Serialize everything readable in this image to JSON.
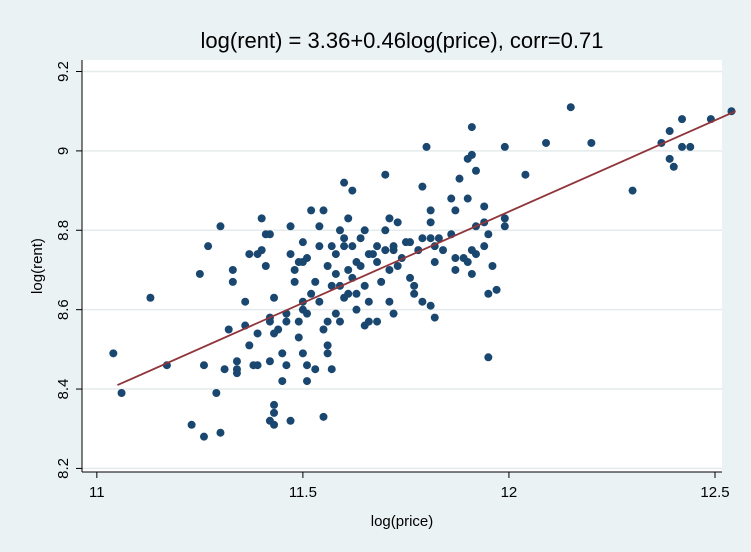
{
  "chart_data": {
    "type": "scatter",
    "title": "log(rent) = 3.36+0.46log(price), corr=0.71",
    "x_label": "log(price)",
    "y_label": "log(rent)",
    "xlim": [
      10.964,
      12.517
    ],
    "ylim": [
      8.191,
      9.229
    ],
    "xticks": [
      11,
      11.5,
      12,
      12.5
    ],
    "yticks": [
      8.2,
      8.4,
      8.6,
      8.8,
      9,
      9.2
    ],
    "grid": true,
    "series": [
      {
        "kind": "scatter",
        "color": "#1a476f",
        "x": [
          11.04,
          11.06,
          11.13,
          11.17,
          11.23,
          11.25,
          11.26,
          11.26,
          11.27,
          11.29,
          11.3,
          11.3,
          11.31,
          11.32,
          11.33,
          11.33,
          11.34,
          11.34,
          11.34,
          11.36,
          11.36,
          11.37,
          11.37,
          11.38,
          11.39,
          11.39,
          11.39,
          11.4,
          11.4,
          11.41,
          11.41,
          11.42,
          11.42,
          11.42,
          11.42,
          11.42,
          11.43,
          11.43,
          11.43,
          11.43,
          11.43,
          11.44,
          11.45,
          11.45,
          11.46,
          11.46,
          11.46,
          11.47,
          11.47,
          11.47,
          11.48,
          11.48,
          11.49,
          11.49,
          11.49,
          11.5,
          11.5,
          11.5,
          11.5,
          11.5,
          11.51,
          11.51,
          11.51,
          11.51,
          11.52,
          11.52,
          11.53,
          11.53,
          11.54,
          11.54,
          11.54,
          11.55,
          11.55,
          11.55,
          11.56,
          11.56,
          11.56,
          11.56,
          11.57,
          11.57,
          11.57,
          11.58,
          11.58,
          11.58,
          11.59,
          11.59,
          11.59,
          11.6,
          11.6,
          11.6,
          11.6,
          11.61,
          11.61,
          11.61,
          11.62,
          11.62,
          11.62,
          11.63,
          11.63,
          11.63,
          11.64,
          11.64,
          11.65,
          11.65,
          11.65,
          11.66,
          11.66,
          11.66,
          11.67,
          11.68,
          11.68,
          11.68,
          11.69,
          11.7,
          11.7,
          11.7,
          11.71,
          11.71,
          11.71,
          11.72,
          11.72,
          11.72,
          11.73,
          11.73,
          11.74,
          11.75,
          11.76,
          11.76,
          11.77,
          11.77,
          11.78,
          11.79,
          11.79,
          11.79,
          11.8,
          11.81,
          11.81,
          11.81,
          11.81,
          11.82,
          11.82,
          11.82,
          11.83,
          11.84,
          11.86,
          11.86,
          11.87,
          11.87,
          11.87,
          11.88,
          11.89,
          11.9,
          11.9,
          11.9,
          11.91,
          11.91,
          11.91,
          11.91,
          11.92,
          11.92,
          11.92,
          11.94,
          11.94,
          11.94,
          11.95,
          11.95,
          11.95,
          11.96,
          11.97,
          11.99,
          11.99,
          11.99,
          12.04,
          12.09,
          12.15,
          12.2,
          12.3,
          12.37,
          12.39,
          12.39,
          12.4,
          12.42,
          12.42,
          12.44,
          12.49,
          12.54
        ],
        "y": [
          8.49,
          8.39,
          8.63,
          8.46,
          8.31,
          8.69,
          8.28,
          8.46,
          8.76,
          8.39,
          8.81,
          8.29,
          8.45,
          8.55,
          8.67,
          8.7,
          8.47,
          8.45,
          8.44,
          8.62,
          8.56,
          8.51,
          8.74,
          8.46,
          8.74,
          8.54,
          8.46,
          8.83,
          8.75,
          8.79,
          8.71,
          8.58,
          8.47,
          8.32,
          8.57,
          8.79,
          8.63,
          8.54,
          8.31,
          8.34,
          8.36,
          8.55,
          8.42,
          8.49,
          8.57,
          8.59,
          8.46,
          8.74,
          8.81,
          8.32,
          8.7,
          8.67,
          8.53,
          8.72,
          8.57,
          8.49,
          8.6,
          8.62,
          8.77,
          8.72,
          8.59,
          8.42,
          8.46,
          8.73,
          8.85,
          8.64,
          8.67,
          8.45,
          8.81,
          8.76,
          8.62,
          8.85,
          8.33,
          8.55,
          8.49,
          8.51,
          8.71,
          8.57,
          8.45,
          8.66,
          8.76,
          8.59,
          8.74,
          8.69,
          8.8,
          8.57,
          8.66,
          8.92,
          8.78,
          8.63,
          8.76,
          8.7,
          8.83,
          8.64,
          8.68,
          8.9,
          8.76,
          8.72,
          8.64,
          8.6,
          8.78,
          8.71,
          8.56,
          8.66,
          8.8,
          8.57,
          8.74,
          8.62,
          8.74,
          8.76,
          8.57,
          8.72,
          8.67,
          8.8,
          8.75,
          8.94,
          8.7,
          8.62,
          8.83,
          8.59,
          8.76,
          8.75,
          8.71,
          8.82,
          8.73,
          8.77,
          8.68,
          8.77,
          8.64,
          8.66,
          8.75,
          8.78,
          8.91,
          8.62,
          9.01,
          8.85,
          8.78,
          8.61,
          8.82,
          8.58,
          8.72,
          8.76,
          8.78,
          8.75,
          8.88,
          8.79,
          8.85,
          8.7,
          8.73,
          8.93,
          8.73,
          8.88,
          8.98,
          8.72,
          8.99,
          9.06,
          8.69,
          8.75,
          8.95,
          8.81,
          8.74,
          8.76,
          8.86,
          8.82,
          8.64,
          8.79,
          8.48,
          8.71,
          8.65,
          8.81,
          8.83,
          9.01,
          8.94,
          9.02,
          9.11,
          9.02,
          8.9,
          9.02,
          9.05,
          8.98,
          8.96,
          9.08,
          9.01,
          9.01,
          9.08,
          9.1
        ]
      },
      {
        "kind": "line",
        "color": "#90353b",
        "x": [
          11.05,
          12.55
        ],
        "y": [
          8.41,
          9.1
        ]
      }
    ]
  }
}
